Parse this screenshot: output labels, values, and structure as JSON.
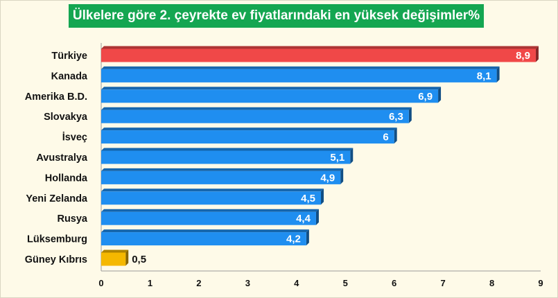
{
  "chart_data": {
    "type": "bar",
    "orientation": "horizontal",
    "title": "Ülkelere göre 2. çeyrekte ev fiyatlarındaki en yüksek değişimler%",
    "categories": [
      "Türkiye",
      "Kanada",
      "Amerika B.D.",
      "Slovakya",
      "İsveç",
      "Avustralya",
      "Hollanda",
      "Yeni Zelanda",
      "Rusya",
      "Lüksemburg",
      "Güney Kıbrıs"
    ],
    "values": [
      8.9,
      8.1,
      6.9,
      6.3,
      6,
      5.1,
      4.9,
      4.5,
      4.4,
      4.2,
      0.5
    ],
    "value_labels": [
      "8,9",
      "8,1",
      "6,9",
      "6,3",
      "6",
      "5,1",
      "4,9",
      "4,5",
      "4,4",
      "4,2",
      "0,5"
    ],
    "bar_colors": [
      "#f04848",
      "#1f8ef0",
      "#1f8ef0",
      "#1f8ef0",
      "#1f8ef0",
      "#1f8ef0",
      "#1f8ef0",
      "#1f8ef0",
      "#1f8ef0",
      "#1f8ef0",
      "#f5b800"
    ],
    "xlim": [
      0,
      9
    ],
    "xticks": [
      "0",
      "1",
      "2",
      "3",
      "4",
      "5",
      "6",
      "7",
      "8",
      "9"
    ],
    "grid": false,
    "xlabel": "",
    "ylabel": ""
  }
}
